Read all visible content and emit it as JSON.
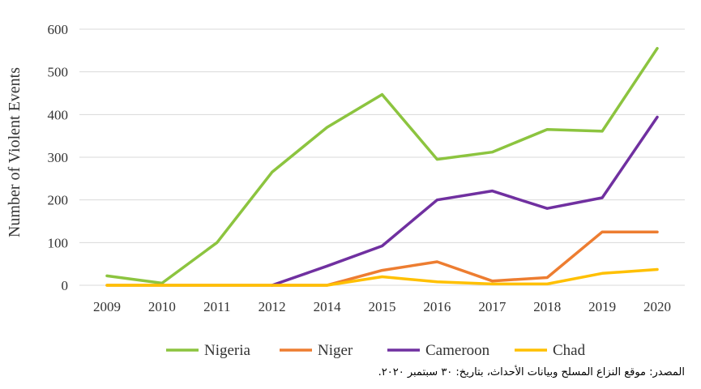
{
  "chart_data": {
    "type": "line",
    "title": "",
    "xlabel": "",
    "ylabel": "Number of Violent Events",
    "categories": [
      "2009",
      "2010",
      "2011",
      "2012",
      "2014",
      "2015",
      "2016",
      "2017",
      "2018",
      "2019",
      "2020"
    ],
    "ylim": [
      0,
      600
    ],
    "yticks": [
      0,
      100,
      200,
      300,
      400,
      500,
      600
    ],
    "grid": true,
    "legend_position": "bottom",
    "series": [
      {
        "name": "Nigeria",
        "color": "#8CC43F",
        "values": [
          22,
          5,
          100,
          265,
          370,
          447,
          295,
          312,
          365,
          361,
          555
        ]
      },
      {
        "name": "Niger",
        "color": "#ED7D31",
        "values": [
          0,
          0,
          0,
          0,
          0,
          35,
          55,
          10,
          18,
          125,
          125
        ]
      },
      {
        "name": "Cameroon",
        "color": "#7030A0",
        "values": [
          null,
          null,
          null,
          0,
          45,
          92,
          200,
          221,
          180,
          205,
          394
        ]
      },
      {
        "name": "Chad",
        "color": "#FFC000",
        "values": [
          0,
          0,
          0,
          0,
          0,
          20,
          8,
          3,
          3,
          28,
          37
        ]
      }
    ]
  },
  "source_note": "المصدر: موقع النزاع المسلح وبيانات الأحداث، بتاريخ: ٣٠ سبتمبر ٢٠٢٠."
}
